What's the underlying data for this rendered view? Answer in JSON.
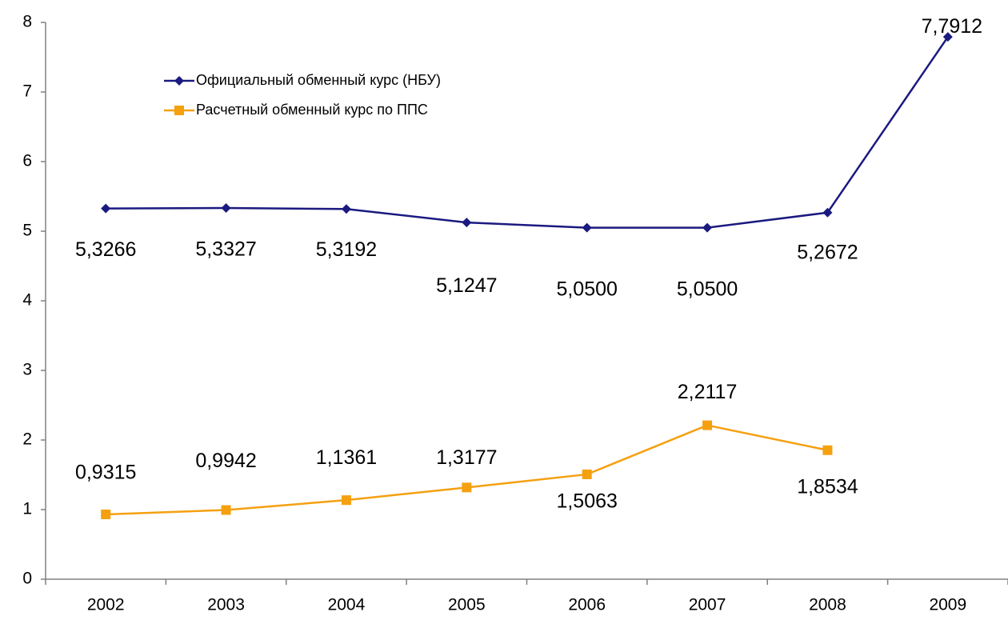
{
  "chart_data": {
    "type": "line",
    "categories": [
      "2002",
      "2003",
      "2004",
      "2005",
      "2006",
      "2007",
      "2008",
      "2009"
    ],
    "series": [
      {
        "name": "Официальный обменный курс (НБУ)",
        "color": "#1a1a80",
        "marker": "diamond",
        "values": [
          5.3266,
          5.3327,
          5.3192,
          5.1247,
          5.05,
          5.05,
          5.2672,
          7.7912
        ],
        "value_labels": [
          "5,3266",
          "5,3327",
          "5,3192",
          "5,1247",
          "5,0500",
          "5,0500",
          "5,2672",
          "7,7912"
        ]
      },
      {
        "name": "Расчетный обменный курс по ППС",
        "color": "#f5a00f",
        "marker": "square",
        "values": [
          0.9315,
          0.9942,
          1.1361,
          1.3177,
          1.5063,
          2.2117,
          1.8534,
          null
        ],
        "value_labels": [
          "0,9315",
          "0,9942",
          "1,1361",
          "1,3177",
          "1,5063",
          "2,2117",
          "1,8534",
          null
        ]
      }
    ],
    "ylim": [
      0,
      8
    ],
    "yticks": [
      0,
      1,
      2,
      3,
      4,
      5,
      6,
      7,
      8
    ],
    "grid": false,
    "legend": "top-left"
  }
}
